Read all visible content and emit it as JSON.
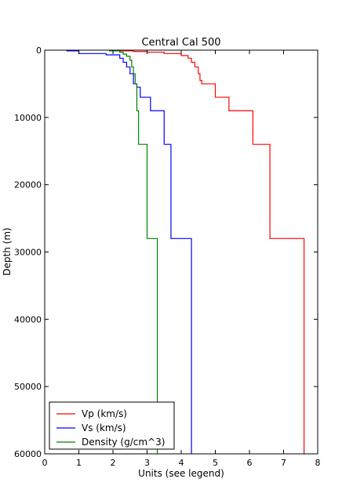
{
  "chart_data": {
    "type": "line",
    "title": "Central Cal 500",
    "xlabel": "Units (see legend)",
    "ylabel": "Depth (m)",
    "xlim": [
      0,
      8
    ],
    "ylim": [
      0,
      60000
    ],
    "y_inverted": true,
    "xticks": [
      0,
      1,
      2,
      3,
      4,
      5,
      6,
      7,
      8
    ],
    "yticks": [
      0,
      10000,
      20000,
      30000,
      40000,
      50000,
      60000
    ],
    "grid": false,
    "legend_position": "lower-left",
    "series": [
      {
        "name": "Vp (km/s)",
        "color": "#ff0000",
        "x": [
          2.0,
          2.0,
          2.6,
          2.6,
          3.0,
          3.0,
          3.5,
          3.5,
          4.0,
          4.0,
          4.2,
          4.2,
          4.3,
          4.3,
          4.4,
          4.4,
          4.5,
          4.5,
          4.55,
          4.55,
          4.6,
          4.6,
          5.0,
          5.0,
          5.4,
          5.4,
          6.1,
          6.1,
          6.6,
          6.6,
          7.6,
          7.6
        ],
        "y": [
          0,
          100,
          100,
          200,
          200,
          300,
          300,
          500,
          500,
          800,
          800,
          1200,
          1200,
          1800,
          1800,
          2500,
          2500,
          3500,
          3500,
          4500,
          4500,
          5000,
          5000,
          7000,
          7000,
          9000,
          9000,
          14000,
          14000,
          28000,
          28000,
          60000
        ]
      },
      {
        "name": "Vs (km/s)",
        "color": "#0000ff",
        "x": [
          0.65,
          0.65,
          1.0,
          1.0,
          1.8,
          1.8,
          2.2,
          2.2,
          2.3,
          2.3,
          2.4,
          2.4,
          2.5,
          2.5,
          2.6,
          2.6,
          2.7,
          2.7,
          2.8,
          2.8,
          3.1,
          3.1,
          3.5,
          3.5,
          3.7,
          3.7,
          4.3,
          4.3
        ],
        "y": [
          0,
          100,
          100,
          500,
          500,
          700,
          700,
          1200,
          1200,
          1800,
          1800,
          2500,
          2500,
          3500,
          3500,
          5000,
          5000,
          5500,
          5500,
          7000,
          7000,
          9000,
          9000,
          14000,
          14000,
          28000,
          28000,
          60000
        ]
      },
      {
        "name": "Density (g/cm^3)",
        "color": "#008000",
        "x": [
          1.9,
          1.9,
          2.2,
          2.2,
          2.3,
          2.3,
          2.4,
          2.4,
          2.5,
          2.5,
          2.55,
          2.55,
          2.6,
          2.6,
          2.65,
          2.65,
          2.7,
          2.7,
          2.75,
          2.75,
          3.0,
          3.0,
          3.3,
          3.3
        ],
        "y": [
          0,
          100,
          100,
          300,
          300,
          600,
          600,
          900,
          900,
          1500,
          1500,
          2500,
          2500,
          3500,
          3500,
          5000,
          5000,
          9000,
          9000,
          14000,
          14000,
          28000,
          28000,
          60000
        ]
      }
    ]
  }
}
